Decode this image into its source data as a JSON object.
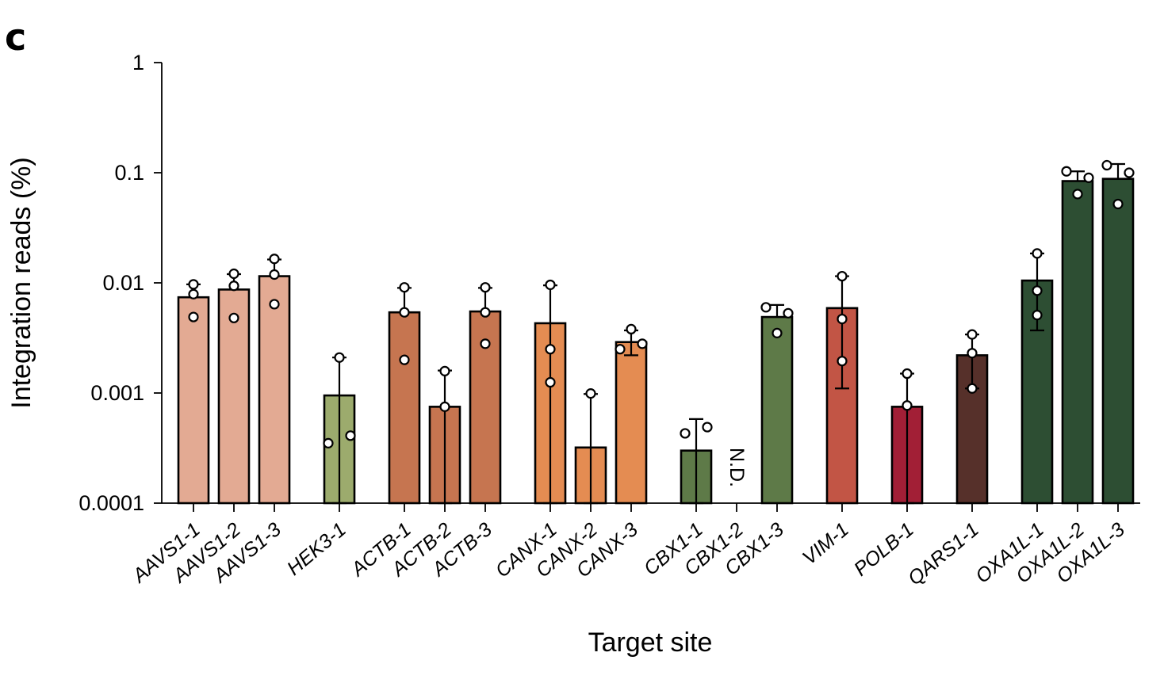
{
  "panel_label": "c",
  "chart_data": {
    "type": "bar",
    "title": "",
    "xlabel": "Target site",
    "ylabel": "Integration reads (%)",
    "yscale": "log",
    "ylim": [
      0.0001,
      1
    ],
    "yticks": [
      {
        "value": 0.0001,
        "label": "0.0001"
      },
      {
        "value": 0.001,
        "label": "0.001"
      },
      {
        "value": 0.01,
        "label": "0.01"
      },
      {
        "value": 0.1,
        "label": "0.1"
      },
      {
        "value": 1,
        "label": "1"
      }
    ],
    "grid": false,
    "categories": [
      {
        "label": "AAVS1-1",
        "group": 0,
        "value": 0.0074,
        "err_low": null,
        "err_high": 0.0097,
        "color": "#e3aa93",
        "points": [
          0.0097,
          0.0079,
          0.0049
        ]
      },
      {
        "label": "AAVS1-2",
        "group": 0,
        "value": 0.0087,
        "err_low": null,
        "err_high": 0.012,
        "color": "#e3aa93",
        "points": [
          0.0121,
          0.0094,
          0.0048
        ]
      },
      {
        "label": "AAVS1-3",
        "group": 0,
        "value": 0.0115,
        "err_low": null,
        "err_high": 0.0163,
        "color": "#e3aa93",
        "points": [
          0.0165,
          0.0119,
          0.0064
        ]
      },
      {
        "label": "HEK3-1",
        "group": 1,
        "value": 0.00095,
        "err_low": 0.0001,
        "err_high": 0.0021,
        "color": "#9cab6d",
        "points": [
          0.0021,
          0.00041,
          0.00035
        ]
      },
      {
        "label": "ACTB-1",
        "group": 2,
        "value": 0.0054,
        "err_low": null,
        "err_high": 0.009,
        "color": "#c67550",
        "points": [
          0.0091,
          0.0054,
          0.002
        ]
      },
      {
        "label": "ACTB-2",
        "group": 2,
        "value": 0.00075,
        "err_low": 0.0001,
        "err_high": 0.0016,
        "color": "#c67550",
        "points": [
          0.00158,
          0.00075
        ]
      },
      {
        "label": "ACTB-3",
        "group": 2,
        "value": 0.0055,
        "err_low": null,
        "err_high": 0.009,
        "color": "#c67550",
        "points": [
          0.0091,
          0.0054,
          0.0028
        ]
      },
      {
        "label": "CANX-1",
        "group": 3,
        "value": 0.0043,
        "err_low": 0.0001,
        "err_high": 0.0095,
        "color": "#e48c52",
        "points": [
          0.0096,
          0.0025,
          0.00125
        ]
      },
      {
        "label": "CANX-2",
        "group": 3,
        "value": 0.00032,
        "err_low": 0.0001,
        "err_high": 0.00098,
        "color": "#e48c52",
        "points": [
          0.00099
        ]
      },
      {
        "label": "CANX-3",
        "group": 3,
        "value": 0.0029,
        "err_low": 0.0022,
        "err_high": 0.0037,
        "color": "#e48c52",
        "points": [
          0.0038,
          0.0028,
          0.0025
        ]
      },
      {
        "label": "CBX1-1",
        "group": 4,
        "value": 0.0003,
        "err_low": 0.0001,
        "err_high": 0.00058,
        "color": "#5e7a48",
        "points": [
          0.00049,
          0.00043
        ]
      },
      {
        "label": "CBX1-2",
        "group": 4,
        "value": null,
        "nd_label": "N.D.",
        "color": "#5e7a48",
        "points": []
      },
      {
        "label": "CBX1-3",
        "group": 4,
        "value": 0.0049,
        "err_low": null,
        "err_high": 0.0063,
        "color": "#5e7a48",
        "points": [
          0.006,
          0.0053,
          0.0035
        ]
      },
      {
        "label": "VIM-1",
        "group": 5,
        "value": 0.0059,
        "err_low": 0.0011,
        "err_high": 0.0115,
        "color": "#c25545",
        "points": [
          0.0115,
          0.0047,
          0.00195
        ]
      },
      {
        "label": "POLB-1",
        "group": 6,
        "value": 0.00075,
        "err_low": 0.0001,
        "err_high": 0.0015,
        "color": "#a21f36",
        "points": [
          0.0015,
          0.00077
        ]
      },
      {
        "label": "QARS1-1",
        "group": 7,
        "value": 0.0022,
        "err_low": 0.0011,
        "err_high": 0.0034,
        "color": "#56302a",
        "points": [
          0.0034,
          0.0023,
          0.0011
        ]
      },
      {
        "label": "OXA1L-1",
        "group": 8,
        "value": 0.0105,
        "err_low": 0.0037,
        "err_high": 0.0185,
        "color": "#2d4e33",
        "points": [
          0.0185,
          0.0085,
          0.0051
        ]
      },
      {
        "label": "OXA1L-2",
        "group": 8,
        "value": 0.084,
        "err_low": null,
        "err_high": 0.103,
        "color": "#2d4e33",
        "points": [
          0.103,
          0.09,
          0.064
        ]
      },
      {
        "label": "OXA1L-3",
        "group": 8,
        "value": 0.088,
        "err_low": null,
        "err_high": 0.12,
        "color": "#2d4e33",
        "points": [
          0.117,
          0.1,
          0.052
        ]
      }
    ]
  }
}
